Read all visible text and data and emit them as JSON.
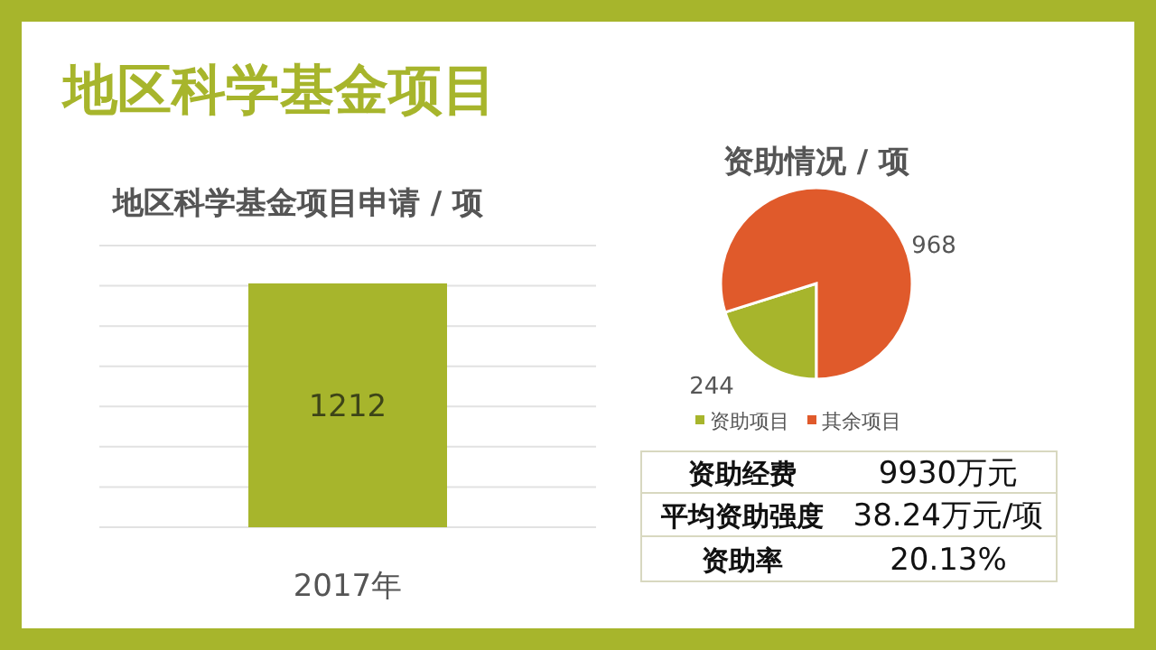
{
  "chart_data": [
    {
      "type": "bar",
      "title": "地区科学基金项目",
      "subtitle": "地区科学基金项目申请 / 项",
      "categories": [
        "2017年"
      ],
      "values": [
        1212
      ],
      "color": "#a7b52c",
      "data_labels": true,
      "grid": "y",
      "ylim": [
        0,
        1400
      ],
      "yticks": [
        {
          "value": 0,
          "label": null
        },
        {
          "value": 200,
          "label": null
        },
        {
          "value": 400,
          "label": null
        },
        {
          "value": 600,
          "label": null
        },
        {
          "value": 800,
          "label": null
        },
        {
          "value": 1000,
          "label": null
        },
        {
          "value": 1200,
          "label": null
        },
        {
          "value": 1400,
          "label": null
        }
      ]
    },
    {
      "type": "pie",
      "title": "资助情况 / 项",
      "categories": [
        "资助项目",
        "其余项目"
      ],
      "values": [
        244,
        968
      ],
      "colors": [
        "#a7b52c",
        "#e05a2b"
      ],
      "data_labels": true,
      "legend": "bottom"
    },
    {
      "type": "other",
      "annotations": [
        "资助经费",
        "9930万元",
        "平均资助强度",
        "38.24万元/项",
        "资助率",
        "20.13%"
      ]
    }
  ]
}
